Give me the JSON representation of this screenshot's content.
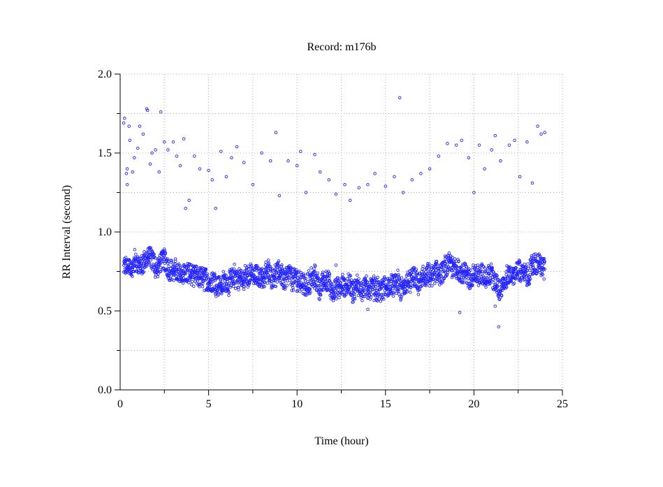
{
  "chart_data": {
    "type": "scatter",
    "title": "Record:  m176b",
    "xlabel": "Time (hour)",
    "ylabel": "RR Interval (second)",
    "xlim": [
      0,
      25
    ],
    "ylim": [
      0,
      2.0
    ],
    "xticks": [
      "0",
      "5",
      "10",
      "15",
      "20",
      "25"
    ],
    "xtick_values": [
      0,
      5,
      10,
      15,
      20,
      25
    ],
    "yticks": [
      "0.0",
      "0.5",
      "1.0",
      "1.5",
      "2.0"
    ],
    "ytick_values": [
      0,
      0.5,
      1.0,
      1.5,
      2.0
    ],
    "grid": true,
    "grid_step_x": 2.5,
    "grid_step_y": 0.25,
    "marker": "open-circle",
    "color": "#2222ff",
    "main_band": {
      "hours": [
        0.2,
        0.5,
        1,
        1.5,
        2,
        2.5,
        3,
        3.5,
        4,
        4.5,
        5,
        5.5,
        6,
        6.5,
        7,
        7.5,
        8,
        8.5,
        9,
        9.5,
        10,
        10.5,
        11,
        11.5,
        12,
        12.5,
        13,
        13.5,
        14,
        14.5,
        15,
        15.5,
        16,
        16.5,
        17,
        17.5,
        18,
        18.5,
        19,
        19.5,
        20,
        20.5,
        21,
        21.5,
        22,
        22.5,
        23,
        23.5,
        24
      ],
      "center": [
        0.77,
        0.76,
        0.78,
        0.85,
        0.76,
        0.82,
        0.75,
        0.74,
        0.72,
        0.7,
        0.69,
        0.68,
        0.7,
        0.7,
        0.7,
        0.72,
        0.73,
        0.74,
        0.74,
        0.72,
        0.7,
        0.68,
        0.68,
        0.67,
        0.65,
        0.64,
        0.64,
        0.65,
        0.64,
        0.65,
        0.65,
        0.65,
        0.66,
        0.67,
        0.68,
        0.7,
        0.74,
        0.76,
        0.76,
        0.74,
        0.7,
        0.72,
        0.72,
        0.66,
        0.74,
        0.76,
        0.72,
        0.78,
        0.78
      ],
      "spread": 0.08,
      "sample_step_hours": 0.02
    },
    "upper_points": [
      [
        0.2,
        1.69
      ],
      [
        0.25,
        1.72
      ],
      [
        0.35,
        1.37
      ],
      [
        0.4,
        1.4
      ],
      [
        0.4,
        1.3
      ],
      [
        0.5,
        1.67
      ],
      [
        0.55,
        1.58
      ],
      [
        0.7,
        1.38
      ],
      [
        0.8,
        1.47
      ],
      [
        1.0,
        1.53
      ],
      [
        1.1,
        1.67
      ],
      [
        1.3,
        1.62
      ],
      [
        1.5,
        1.78
      ],
      [
        1.55,
        1.77
      ],
      [
        1.7,
        1.43
      ],
      [
        1.8,
        1.5
      ],
      [
        2.0,
        1.52
      ],
      [
        2.2,
        1.38
      ],
      [
        2.3,
        1.76
      ],
      [
        2.5,
        1.57
      ],
      [
        2.7,
        1.52
      ],
      [
        3.0,
        1.57
      ],
      [
        3.2,
        1.48
      ],
      [
        3.4,
        1.42
      ],
      [
        3.6,
        1.59
      ],
      [
        3.7,
        1.15
      ],
      [
        3.9,
        1.2
      ],
      [
        4.2,
        1.48
      ],
      [
        4.5,
        1.4
      ],
      [
        5.0,
        1.39
      ],
      [
        5.2,
        1.33
      ],
      [
        5.4,
        1.15
      ],
      [
        5.7,
        1.51
      ],
      [
        6.0,
        1.35
      ],
      [
        6.3,
        1.47
      ],
      [
        6.6,
        1.54
      ],
      [
        7.0,
        1.44
      ],
      [
        7.5,
        1.3
      ],
      [
        8.0,
        1.5
      ],
      [
        8.5,
        1.45
      ],
      [
        8.8,
        1.63
      ],
      [
        9.0,
        1.23
      ],
      [
        9.5,
        1.45
      ],
      [
        10.0,
        1.42
      ],
      [
        10.2,
        1.51
      ],
      [
        10.5,
        1.25
      ],
      [
        11.0,
        1.49
      ],
      [
        11.3,
        1.38
      ],
      [
        11.8,
        1.33
      ],
      [
        12.2,
        1.24
      ],
      [
        12.7,
        1.3
      ],
      [
        13.0,
        1.2
      ],
      [
        13.5,
        1.28
      ],
      [
        14.0,
        1.3
      ],
      [
        14.4,
        1.37
      ],
      [
        15.0,
        1.29
      ],
      [
        15.5,
        1.35
      ],
      [
        15.8,
        1.85
      ],
      [
        16.0,
        1.25
      ],
      [
        16.5,
        1.33
      ],
      [
        17.0,
        1.37
      ],
      [
        17.5,
        1.4
      ],
      [
        18.0,
        1.48
      ],
      [
        18.5,
        1.56
      ],
      [
        19.0,
        1.55
      ],
      [
        19.3,
        1.58
      ],
      [
        19.7,
        1.47
      ],
      [
        20.0,
        1.25
      ],
      [
        20.3,
        1.55
      ],
      [
        20.6,
        1.4
      ],
      [
        21.0,
        1.52
      ],
      [
        21.2,
        1.61
      ],
      [
        21.5,
        1.45
      ],
      [
        22.0,
        1.55
      ],
      [
        22.3,
        1.58
      ],
      [
        22.6,
        1.35
      ],
      [
        23.0,
        1.57
      ],
      [
        23.3,
        1.31
      ],
      [
        23.6,
        1.67
      ],
      [
        23.8,
        1.62
      ],
      [
        24.0,
        1.63
      ]
    ],
    "outlier_points": [
      [
        11.0,
        0.79
      ],
      [
        12.2,
        0.79
      ],
      [
        14.0,
        0.51
      ],
      [
        19.2,
        0.49
      ],
      [
        21.2,
        0.53
      ],
      [
        21.4,
        0.4
      ]
    ]
  }
}
